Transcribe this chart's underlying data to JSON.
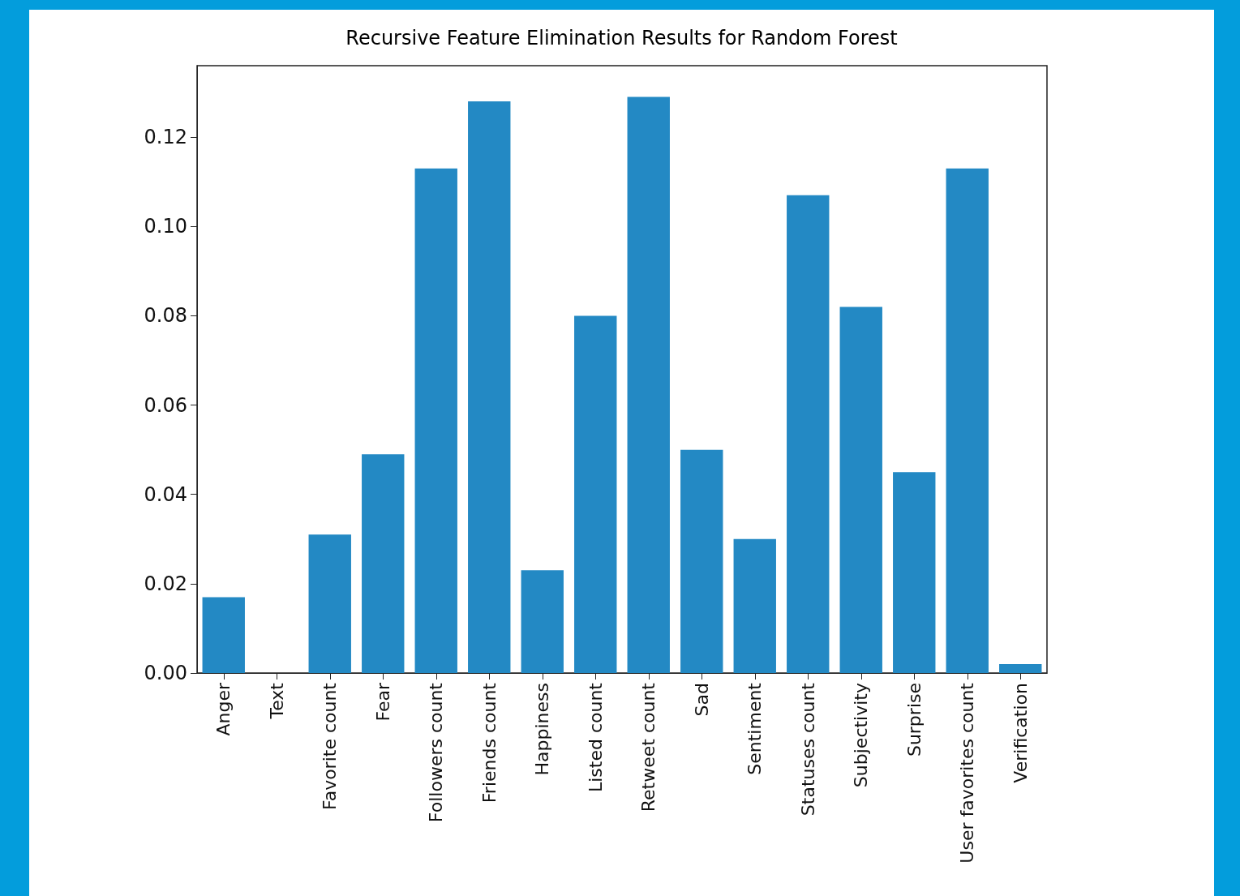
{
  "chart_data": {
    "type": "bar",
    "title": "Recursive Feature Elimination Results for Random Forest",
    "categories": [
      "Anger",
      "Text",
      "Favorite count",
      "Fear",
      "Followers count",
      "Friends count",
      "Happiness",
      "Listed count",
      "Retweet count",
      "Sad",
      "Sentiment",
      "Statuses count",
      "Subjectivity",
      "Surprise",
      "User favorites count",
      "Verification"
    ],
    "values": [
      0.017,
      0,
      0.031,
      0.049,
      0.113,
      0.128,
      0.023,
      0.08,
      0.129,
      0.05,
      0.03,
      0.107,
      0.082,
      0.045,
      0.113,
      0.002
    ],
    "color": "#2389c4",
    "ylim": [
      0,
      0.136
    ],
    "yticks": [
      {
        "value": 0,
        "label": "0.00"
      },
      0.02,
      0.04,
      0.06,
      0.08,
      {
        "value": 0.1,
        "label": "0.10"
      },
      0.12
    ],
    "grid": false
  }
}
